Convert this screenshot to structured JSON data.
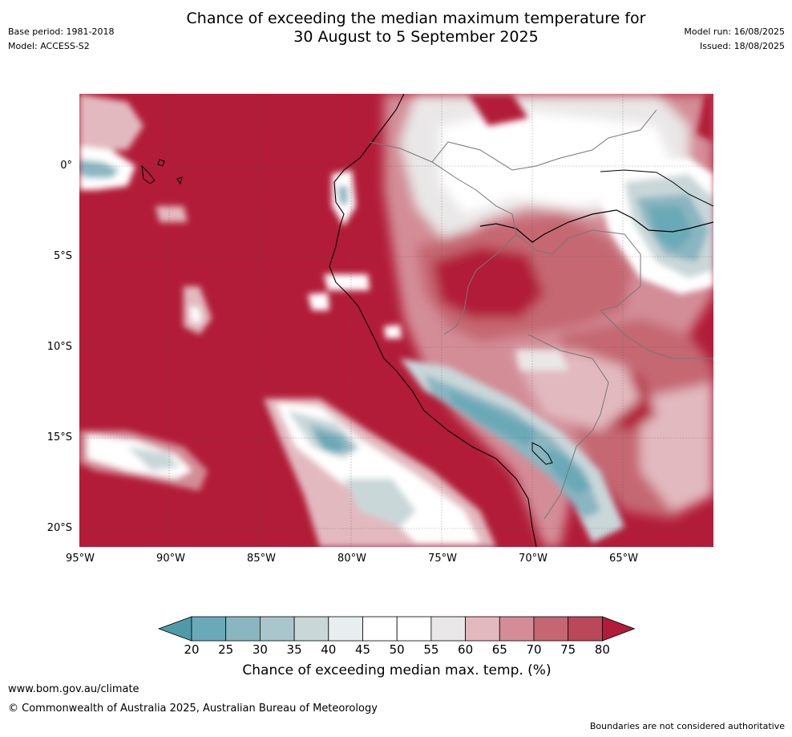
{
  "header": {
    "title_line1": "Chance of exceeding the median maximum temperature for",
    "title_line2": "30 August to 5 September 2025",
    "base_period": "Base period: 1981-2018",
    "model": "Model: ACCESS-S2",
    "model_run": "Model run: 16/08/2025",
    "issued": "Issued: 18/08/2025"
  },
  "map": {
    "lat_labels": [
      "0°",
      "5°S",
      "10°S",
      "15°S",
      "20°S"
    ],
    "lon_labels": [
      "95°W",
      "90°W",
      "85°W",
      "80°W",
      "75°W",
      "70°W",
      "65°W"
    ],
    "dominant_category": "75-80+"
  },
  "colorbar": {
    "ticks": [
      "20",
      "25",
      "30",
      "35",
      "40",
      "45",
      "50",
      "55",
      "60",
      "65",
      "70",
      "75",
      "80"
    ],
    "colors": [
      "#4e9aa8",
      "#6aa9b7",
      "#8ab6c1",
      "#a9c6cb",
      "#c9d7d9",
      "#e8eef0",
      "#ffffff",
      "#ffffff",
      "#e9e7e7",
      "#e2b9bf",
      "#d38d97",
      "#c56772",
      "#bb4858",
      "#b21c38"
    ],
    "label": "Chance of exceeding median max. temp. (%)"
  },
  "footer": {
    "url": "www.bom.gov.au/climate",
    "copyright": "© Commonwealth of Australia 2025, Australian Bureau of Meteorology",
    "disclaimer": "Boundaries are not considered authoritative"
  }
}
